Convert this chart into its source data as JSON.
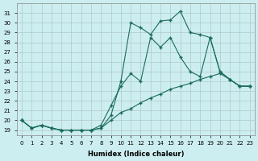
{
  "xlabel": "Humidex (Indice chaleur)",
  "bg_color": "#cdeef0",
  "grid_color": "#b0c8c8",
  "line_color": "#1a6b5a",
  "x_values": [
    0,
    1,
    2,
    3,
    4,
    5,
    6,
    7,
    8,
    9,
    10,
    11,
    12,
    13,
    14,
    15,
    16,
    17,
    18,
    19,
    20,
    21,
    22,
    23
  ],
  "line1": [
    20.0,
    19.2,
    19.5,
    19.2,
    19.0,
    19.0,
    19.0,
    19.0,
    19.2,
    20.5,
    24.0,
    30.0,
    29.5,
    28.8,
    30.2,
    30.3,
    31.2,
    29.0,
    28.8,
    28.5,
    25.0,
    24.2,
    23.5,
    23.5
  ],
  "line2": [
    20.0,
    19.2,
    19.5,
    19.2,
    19.0,
    19.0,
    19.0,
    19.0,
    19.5,
    21.5,
    23.5,
    24.8,
    24.0,
    28.5,
    27.5,
    28.5,
    26.5,
    25.0,
    24.5,
    28.5,
    25.0,
    24.2,
    23.5,
    23.5
  ],
  "line3": [
    20.0,
    19.2,
    19.5,
    19.2,
    19.0,
    19.0,
    19.0,
    19.0,
    19.2,
    20.0,
    20.8,
    21.2,
    21.8,
    22.3,
    22.7,
    23.2,
    23.5,
    23.8,
    24.2,
    24.5,
    24.8,
    24.2,
    23.5,
    23.5
  ],
  "ylim": [
    18.5,
    32
  ],
  "yticks": [
    19,
    20,
    21,
    22,
    23,
    24,
    25,
    26,
    27,
    28,
    29,
    30,
    31
  ],
  "xticks": [
    0,
    1,
    2,
    3,
    4,
    5,
    6,
    7,
    8,
    9,
    10,
    11,
    12,
    13,
    14,
    15,
    16,
    17,
    18,
    19,
    20,
    21,
    22,
    23
  ]
}
